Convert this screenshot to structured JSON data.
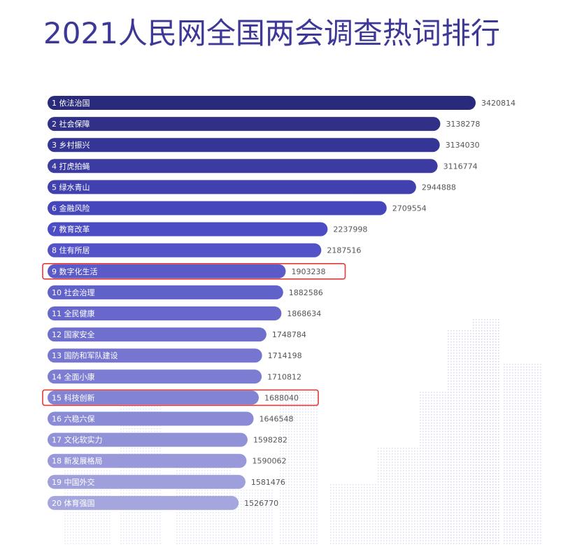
{
  "chart_data": {
    "type": "bar",
    "orientation": "horizontal",
    "title": "2021人民网全国两会调查热词排行",
    "xlabel": "",
    "ylabel": "",
    "grid": false,
    "xlim": [
      0,
      3420814
    ],
    "categories": [
      "1 依法治国",
      "2 社会保障",
      "3 乡村振兴",
      "4 打虎拍蝇",
      "5 绿水青山",
      "6 金融风险",
      "7 教育改革",
      "8 住有所居",
      "9 数字化生活",
      "10 社会治理",
      "11 全民健康",
      "12 国家安全",
      "13 国防和军队建设",
      "14 全面小康",
      "15 科技创新",
      "16 六稳六保",
      "17 文化软实力",
      "18 新发展格局",
      "19 中国外交",
      "20 体育强国"
    ],
    "values": [
      3420814,
      3138278,
      3134030,
      3116774,
      2944888,
      2709554,
      2237998,
      2187516,
      1903238,
      1882586,
      1868634,
      1748784,
      1714198,
      1710812,
      1688040,
      1646548,
      1598282,
      1590062,
      1581476,
      1526770
    ],
    "value_labels": [
      "3420814",
      "3138278",
      "3134030",
      "3116774",
      "2944888",
      "2709554",
      "2237998",
      "2187516",
      "1903238",
      "1882586",
      "1868634",
      "1748784",
      "1714198",
      "1710812",
      "1688040",
      "1646548",
      "1598282",
      "1590062",
      "1581476",
      "1526770"
    ],
    "highlighted_ranks": [
      9,
      15
    ],
    "colors": {
      "title": "#3d3896",
      "bar_start": "#2a2a7c",
      "bar_mid": "#4a4ac4",
      "bar_end": "#a6a6de",
      "highlight_box": "#e03a3a",
      "value_text": "#555555",
      "label_text": "#ffffff"
    }
  }
}
